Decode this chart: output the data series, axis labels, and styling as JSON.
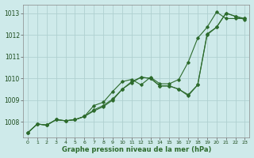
{
  "title": "Graphe pression niveau de la mer (hPa)",
  "background_color": "#ceeaea",
  "grid_color": "#afd0d0",
  "line_color": "#2d6b2d",
  "xlim": [
    -0.5,
    23.5
  ],
  "ylim": [
    1007.3,
    1013.4
  ],
  "yticks": [
    1008,
    1009,
    1010,
    1011,
    1012,
    1013
  ],
  "xticks": [
    0,
    1,
    2,
    3,
    4,
    5,
    6,
    7,
    8,
    9,
    10,
    11,
    12,
    13,
    14,
    15,
    16,
    17,
    18,
    19,
    20,
    21,
    22,
    23
  ],
  "series1": [
    1007.5,
    1007.9,
    1007.85,
    1008.1,
    1008.05,
    1008.1,
    1008.25,
    1008.5,
    1008.7,
    1009.0,
    1009.5,
    1009.8,
    1010.05,
    1010.0,
    1009.65,
    1009.65,
    1009.5,
    1009.2,
    1009.7,
    1012.0,
    1012.35,
    1013.0,
    1012.85,
    1012.7
  ],
  "series2": [
    1007.5,
    1007.9,
    1007.85,
    1008.1,
    1008.05,
    1008.1,
    1008.25,
    1008.55,
    1008.75,
    1009.05,
    1009.5,
    1009.85,
    1010.05,
    1010.0,
    1009.65,
    1009.65,
    1009.5,
    1009.25,
    1009.7,
    1012.05,
    1012.35,
    1013.0,
    1012.85,
    1012.75
  ],
  "series3": [
    1007.5,
    1007.9,
    1007.85,
    1008.1,
    1008.05,
    1008.1,
    1008.25,
    1008.75,
    1008.9,
    1009.4,
    1009.85,
    1009.95,
    1009.7,
    1010.05,
    1009.75,
    1009.75,
    1009.95,
    1010.75,
    1011.85,
    1012.35,
    1013.05,
    1012.75,
    1012.75,
    1012.75
  ]
}
